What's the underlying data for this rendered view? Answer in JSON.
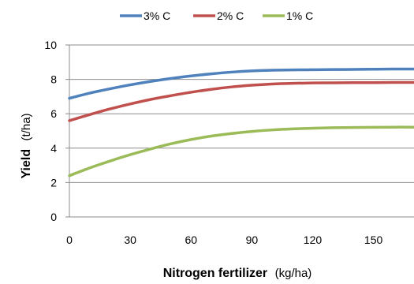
{
  "chart_data": {
    "type": "line",
    "xlabel": "Nitrogen fertilizer",
    "xlabel_unit": "(kg/ha)",
    "ylabel": "Yield",
    "ylabel_unit": "(t/ha)",
    "xlim": [
      0,
      170
    ],
    "ylim": [
      0,
      10
    ],
    "x_ticks": [
      0,
      30,
      60,
      90,
      120,
      150
    ],
    "y_ticks": [
      0,
      2,
      4,
      6,
      8,
      10
    ],
    "x_tick_labels": [
      "0",
      "30",
      "60",
      "90",
      "120",
      "150"
    ],
    "y_tick_labels": [
      "0",
      "2",
      "4",
      "6",
      "8",
      "10"
    ],
    "grid": "horizontal",
    "legend_position": "top",
    "series": [
      {
        "name": "3% C",
        "color": "#4F81BD",
        "x": [
          0,
          10,
          20,
          30,
          40,
          50,
          60,
          70,
          80,
          90,
          100,
          110,
          120,
          130,
          140,
          150,
          160,
          170
        ],
        "y": [
          6.9,
          7.2,
          7.45,
          7.68,
          7.88,
          8.05,
          8.2,
          8.32,
          8.42,
          8.49,
          8.53,
          8.55,
          8.56,
          8.57,
          8.58,
          8.59,
          8.6,
          8.6
        ]
      },
      {
        "name": "2% C",
        "color": "#C0504D",
        "x": [
          0,
          10,
          20,
          30,
          40,
          50,
          60,
          70,
          80,
          90,
          100,
          110,
          120,
          130,
          140,
          150,
          160,
          170
        ],
        "y": [
          5.6,
          5.95,
          6.28,
          6.57,
          6.83,
          7.05,
          7.25,
          7.42,
          7.56,
          7.66,
          7.73,
          7.77,
          7.79,
          7.8,
          7.81,
          7.81,
          7.82,
          7.82
        ]
      },
      {
        "name": "1% C",
        "color": "#9BBB59",
        "x": [
          0,
          10,
          20,
          30,
          40,
          50,
          60,
          70,
          80,
          90,
          100,
          110,
          120,
          130,
          140,
          150,
          160,
          170
        ],
        "y": [
          2.4,
          2.85,
          3.25,
          3.62,
          3.95,
          4.25,
          4.5,
          4.7,
          4.85,
          4.97,
          5.06,
          5.12,
          5.16,
          5.19,
          5.2,
          5.21,
          5.22,
          5.22
        ]
      }
    ]
  }
}
